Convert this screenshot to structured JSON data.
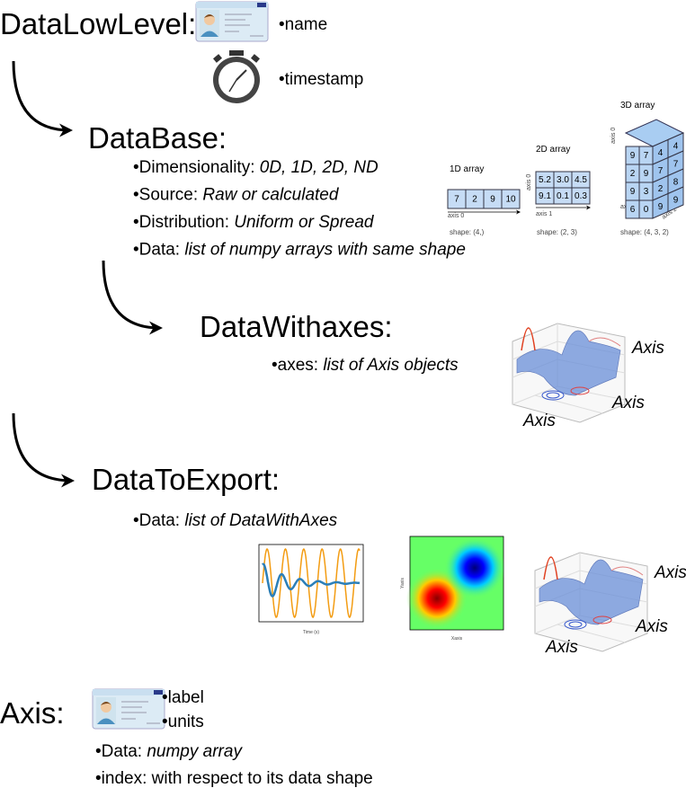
{
  "datalowlevel": {
    "title": "DataLowLevel:",
    "name": "•name",
    "timestamp": "•timestamp"
  },
  "database": {
    "title": "DataBase:",
    "attributes": [
      {
        "label": "•Dimensionality: ",
        "value": "0D, 1D, 2D, ND"
      },
      {
        "label": "•Source: ",
        "value": "Raw or calculated"
      },
      {
        "label": "•Distribution: ",
        "value": "Uniform or Spread"
      },
      {
        "label": "•Data: ",
        "value": "list of numpy arrays with same shape"
      }
    ]
  },
  "arrays": {
    "array1d": {
      "title": "1D array",
      "cells": [
        "7",
        "2",
        "9",
        "10"
      ],
      "axis": "axis 0",
      "shape": "shape: (4,)"
    },
    "array2d": {
      "title": "2D array",
      "rows": [
        [
          "5.2",
          "3.0",
          "4.5"
        ],
        [
          "9.1",
          "0.1",
          "0.3"
        ]
      ],
      "axis0": "axis 0",
      "axis1": "axis 1",
      "shape": "shape: (2, 3)"
    },
    "array3d": {
      "title": "3D array",
      "front": [
        [
          "9",
          "7"
        ],
        [
          "2",
          "9"
        ],
        [
          "9",
          "3"
        ],
        [
          "6",
          "0"
        ]
      ],
      "side": [
        [
          "4",
          "4"
        ],
        [
          "7",
          "7"
        ],
        [
          "2",
          "8"
        ],
        [
          "9",
          "9"
        ]
      ],
      "axis0": "axis 0",
      "axis1": "axis 1",
      "axis2": "axis 2",
      "shape": "shape: (4, 3, 2)"
    }
  },
  "datawithaxes": {
    "title": "DataWithaxes:",
    "label": "•axes: ",
    "value": "list of Axis objects",
    "axis_labels": [
      "Axis",
      "Axis",
      "Axis"
    ]
  },
  "datatoexport": {
    "title": "DataToExport:",
    "label": "•Data: ",
    "value": "list of DataWithAxes",
    "line_xlabel": "Time (s)",
    "map_xlabel": "Xaxis",
    "map_ylabel": "Yaxis",
    "axis_labels": [
      "Axis",
      "Axis",
      "Axis"
    ]
  },
  "axis": {
    "title": "Axis:",
    "label": "•label",
    "units": "•units",
    "data_label": "•Data: ",
    "data_value": "numpy array",
    "index": "•index: with respect to its data shape"
  }
}
